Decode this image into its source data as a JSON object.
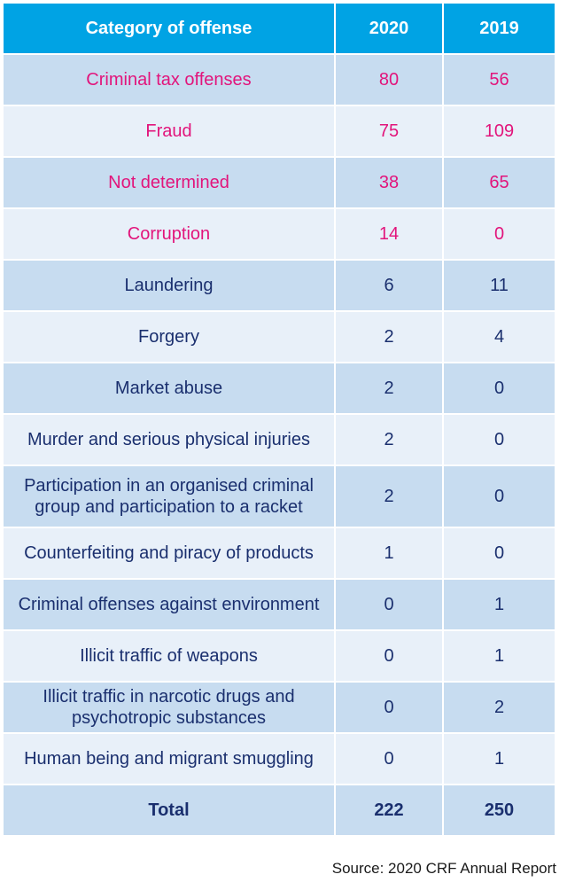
{
  "table": {
    "headers": [
      "Category of offense",
      "2020",
      "2019"
    ],
    "rows": [
      {
        "category": "Criminal tax offenses",
        "y2020": "80",
        "y2019": "56",
        "highlight": true
      },
      {
        "category": "Fraud",
        "y2020": "75",
        "y2019": "109",
        "highlight": true
      },
      {
        "category": "Not determined",
        "y2020": "38",
        "y2019": "65",
        "highlight": true
      },
      {
        "category": "Corruption",
        "y2020": "14",
        "y2019": "0",
        "highlight": true
      },
      {
        "category": "Laundering",
        "y2020": "6",
        "y2019": "11",
        "highlight": false
      },
      {
        "category": "Forgery",
        "y2020": "2",
        "y2019": "4",
        "highlight": false
      },
      {
        "category": "Market abuse",
        "y2020": "2",
        "y2019": "0",
        "highlight": false
      },
      {
        "category": "Murder and serious physical injuries",
        "y2020": "2",
        "y2019": "0",
        "highlight": false
      },
      {
        "category": "Participation in an organised criminal group and participation to a racket",
        "y2020": "2",
        "y2019": "0",
        "highlight": false
      },
      {
        "category": "Counterfeiting and piracy of products",
        "y2020": "1",
        "y2019": "0",
        "highlight": false
      },
      {
        "category": "Criminal offenses against environment",
        "y2020": "0",
        "y2019": "1",
        "highlight": false
      },
      {
        "category": "Illicit traffic of weapons",
        "y2020": "0",
        "y2019": "1",
        "highlight": false
      },
      {
        "category": "Illicit traffic in narcotic drugs and psychotropic substances",
        "y2020": "0",
        "y2019": "2",
        "highlight": false
      },
      {
        "category": "Human being and migrant smuggling",
        "y2020": "0",
        "y2019": "1",
        "highlight": false
      }
    ],
    "total": {
      "label": "Total",
      "y2020": "222",
      "y2019": "250"
    }
  },
  "source": "Source: 2020 CRF Annual Report",
  "colors": {
    "header_bg": "#00a3e4",
    "row_dark": "#c7dcf0",
    "row_light": "#e8f0f9",
    "highlight_text": "#e2147b",
    "normal_text": "#1a2f6e"
  }
}
